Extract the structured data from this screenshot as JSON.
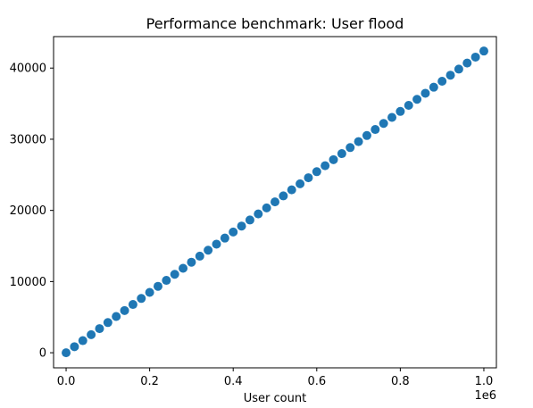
{
  "chart_data": {
    "type": "scatter",
    "title": "Performance benchmark: User flood",
    "xlabel": "User count",
    "ylabel": "",
    "x_offset_label": "1e6",
    "x_scale": 1000000,
    "xlim": [
      -30000,
      1030000
    ],
    "ylim": [
      -2120,
      44420
    ],
    "x_ticks": [
      0,
      200000,
      400000,
      600000,
      800000,
      1000000
    ],
    "x_tick_labels": [
      "0.0",
      "0.2",
      "0.4",
      "0.6",
      "0.8",
      "1.0"
    ],
    "y_ticks": [
      0,
      10000,
      20000,
      30000,
      40000
    ],
    "y_tick_labels": [
      "0",
      "10000",
      "20000",
      "30000",
      "40000"
    ],
    "grid": false,
    "series": [
      {
        "color": "#1f77b4",
        "x": [
          0,
          20000,
          40000,
          60000,
          80000,
          100000,
          120000,
          140000,
          160000,
          180000,
          200000,
          220000,
          240000,
          260000,
          280000,
          300000,
          320000,
          340000,
          360000,
          380000,
          400000,
          420000,
          440000,
          460000,
          480000,
          500000,
          520000,
          540000,
          560000,
          580000,
          600000,
          620000,
          640000,
          660000,
          680000,
          700000,
          720000,
          740000,
          760000,
          780000,
          800000,
          820000,
          840000,
          860000,
          880000,
          900000,
          920000,
          940000,
          960000,
          980000,
          1000000
        ],
        "y": [
          0,
          850,
          1700,
          2540,
          3390,
          4240,
          5090,
          5930,
          6780,
          7630,
          8480,
          9330,
          10170,
          11020,
          11870,
          12720,
          13570,
          14410,
          15260,
          16110,
          16960,
          17800,
          18650,
          19500,
          20350,
          21200,
          22040,
          22890,
          23740,
          24590,
          25440,
          26280,
          27130,
          27980,
          28830,
          29670,
          30520,
          31370,
          32220,
          33070,
          33910,
          34760,
          35610,
          36460,
          37310,
          38150,
          39000,
          39850,
          40700,
          41540,
          42390
        ]
      }
    ]
  }
}
